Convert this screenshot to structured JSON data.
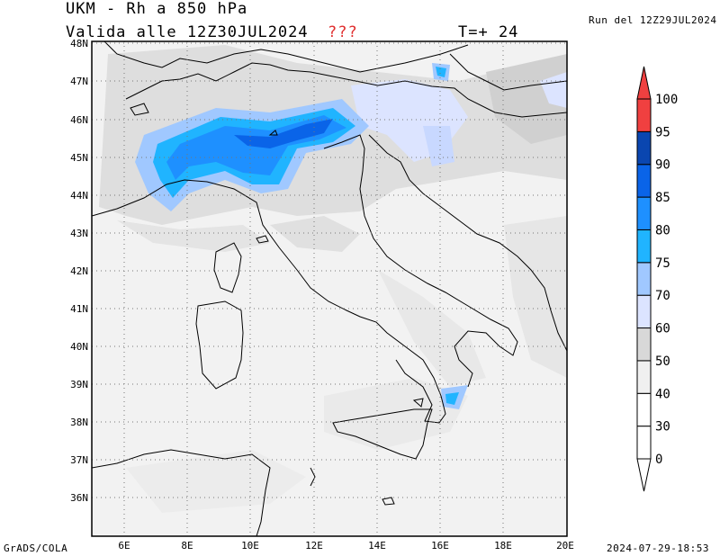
{
  "header": {
    "title": "UKM - Rh a 850 hPa",
    "valid": "Valida alle 12Z30JUL2024",
    "flag": "???",
    "step": "T=+ 24",
    "run": "Run del 12Z29JUL2024"
  },
  "footer": {
    "left": "GrADS/COLA",
    "right": "2024-07-29-18:53"
  },
  "map": {
    "lat_labels": [
      "48N",
      "47N",
      "46N",
      "45N",
      "44N",
      "43N",
      "42N",
      "41N",
      "40N",
      "39N",
      "38N",
      "37N",
      "36N"
    ],
    "lon_labels": [
      "6E",
      "8E",
      "10E",
      "12E",
      "14E",
      "16E",
      "18E",
      "20E"
    ],
    "lat_range": [
      35,
      48
    ],
    "lon_range": [
      5,
      20
    ],
    "grid": "dotted"
  },
  "colorbar": {
    "levels": [
      "0",
      "30",
      "40",
      "50",
      "60",
      "70",
      "75",
      "80",
      "85",
      "90",
      "95",
      "100"
    ],
    "colors": [
      "#ffffff",
      "#ffffff",
      "#ffffff",
      "#f0f0f0",
      "#d8d8d8",
      "#dce4ff",
      "#a0c8ff",
      "#20b4ff",
      "#1e90ff",
      "#0a64e8",
      "#0a46b0",
      "#f04040"
    ]
  }
}
